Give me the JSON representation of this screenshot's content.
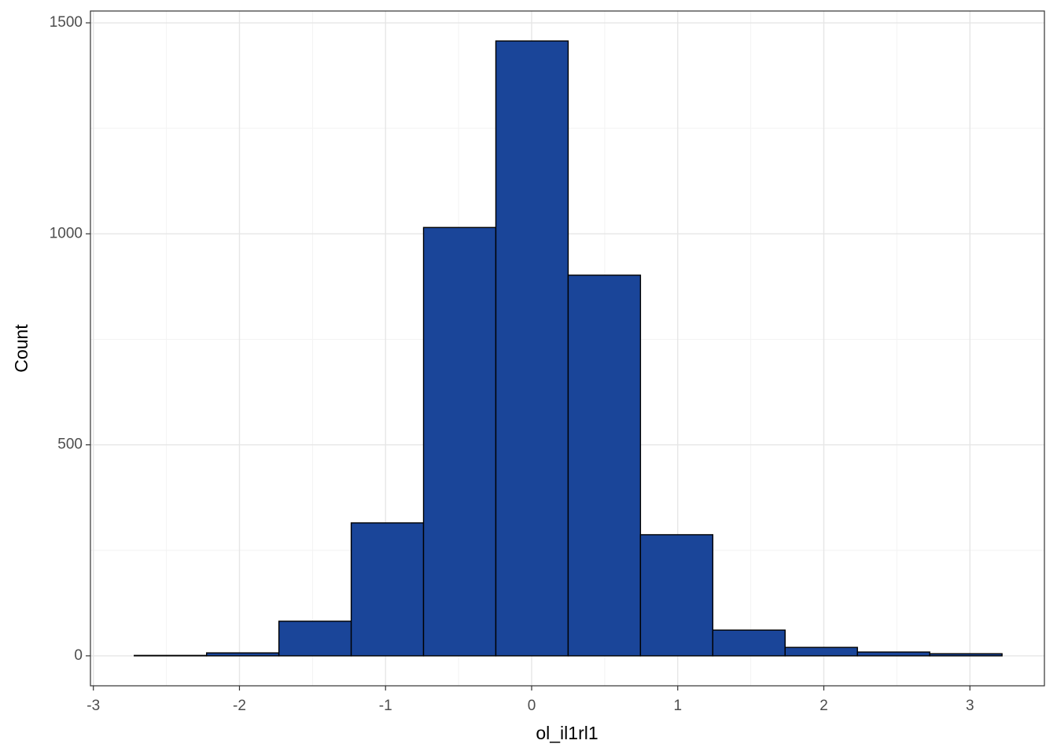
{
  "chart_data": {
    "type": "histogram",
    "x_label": "ol_il1rl1",
    "y_label": "Count",
    "bins": [
      -2.72,
      -2.225,
      -1.73,
      -1.235,
      -0.74,
      -0.245,
      0.25,
      0.745,
      1.24,
      1.735,
      2.23,
      2.725,
      3.22
    ],
    "values": [
      1,
      7,
      82,
      315,
      1015,
      1457,
      902,
      287,
      61,
      20,
      9,
      5
    ],
    "color": "#1a4599",
    "edge_color": "#000000",
    "xlim": [
      -3.02,
      3.51
    ],
    "xticks": [
      -3,
      -2,
      -1,
      0,
      1,
      2,
      3
    ],
    "minor_xticks": [
      -2.5,
      -1.5,
      -0.5,
      0.5,
      1.5,
      2.5
    ],
    "ylim": [
      -71,
      1528
    ],
    "yticks": [
      0,
      500,
      1000,
      1500
    ],
    "minor_yticks": [
      250,
      750,
      1250
    ],
    "grid": true
  }
}
